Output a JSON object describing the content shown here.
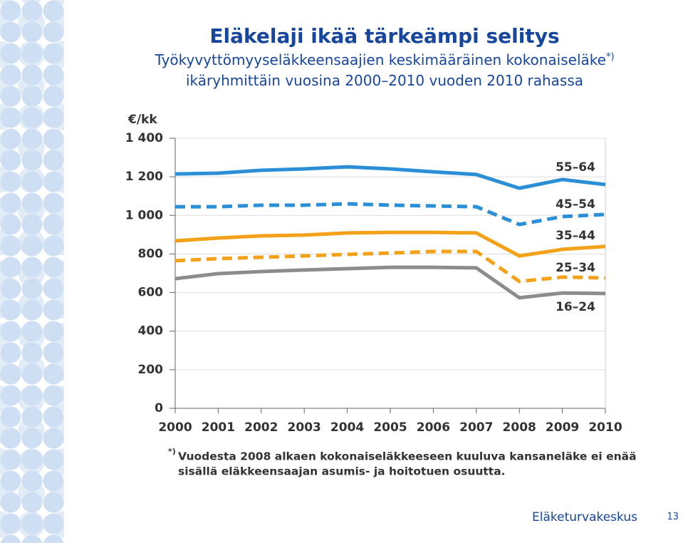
{
  "chart_data": {
    "type": "line",
    "title": "Eläkelaji ikää tärkeämpi selitys",
    "subtitle": [
      "Työkyvyttömyyseläkkeensaajien keskimääräinen kokonaiseläke",
      "ikäryhmittäin vuosina 2000–2010 vuoden 2010 rahassa"
    ],
    "subtitle_note": "*)",
    "y_label": "€/kk",
    "categories": [
      "2000",
      "2001",
      "2002",
      "2003",
      "2004",
      "2005",
      "2006",
      "2007",
      "2008",
      "2009",
      "2010"
    ],
    "series": [
      {
        "name": "55–64",
        "color": "#2a8fd6",
        "dashed": false,
        "values": [
          1215,
          1219,
          1234,
          1241,
          1252,
          1241,
          1226,
          1212,
          1141,
          1186,
          1160
        ]
      },
      {
        "name": "45–54",
        "color": "#2a8fd6",
        "dashed": true,
        "values": [
          1045,
          1045,
          1053,
          1053,
          1060,
          1053,
          1049,
          1045,
          953,
          994,
          1005
        ]
      },
      {
        "name": "35–44",
        "color": "#f4a11a",
        "dashed": false,
        "values": [
          868,
          883,
          894,
          898,
          909,
          912,
          912,
          909,
          790,
          824,
          839
        ]
      },
      {
        "name": "25–34",
        "color": "#f4a11a",
        "dashed": true,
        "values": [
          765,
          776,
          783,
          790,
          798,
          805,
          813,
          813,
          658,
          680,
          676
        ]
      },
      {
        "name": "16–24",
        "color": "#8c8c8c",
        "dashed": false,
        "values": [
          672,
          698,
          709,
          717,
          724,
          731,
          731,
          728,
          573,
          598,
          595
        ]
      }
    ],
    "ylim": [
      0,
      1400
    ],
    "yticks": [
      0,
      200,
      400,
      600,
      800,
      {
        "value": 1000,
        "label": "1 000"
      },
      {
        "value": 1200,
        "label": "1 200"
      },
      {
        "value": 1400,
        "label": "1 400"
      }
    ],
    "grid": true,
    "footnote_marker": "*)",
    "footnote": [
      "Vuodesta 2008 alkaen kokonaiseläkkeeseen kuuluva kansaneläke ei enää",
      "sisällä eläkkeensaajan asumis- ja hoitotuen osuutta."
    ]
  },
  "footer": {
    "organization": "Eläketurvakeskus",
    "page": 13
  }
}
